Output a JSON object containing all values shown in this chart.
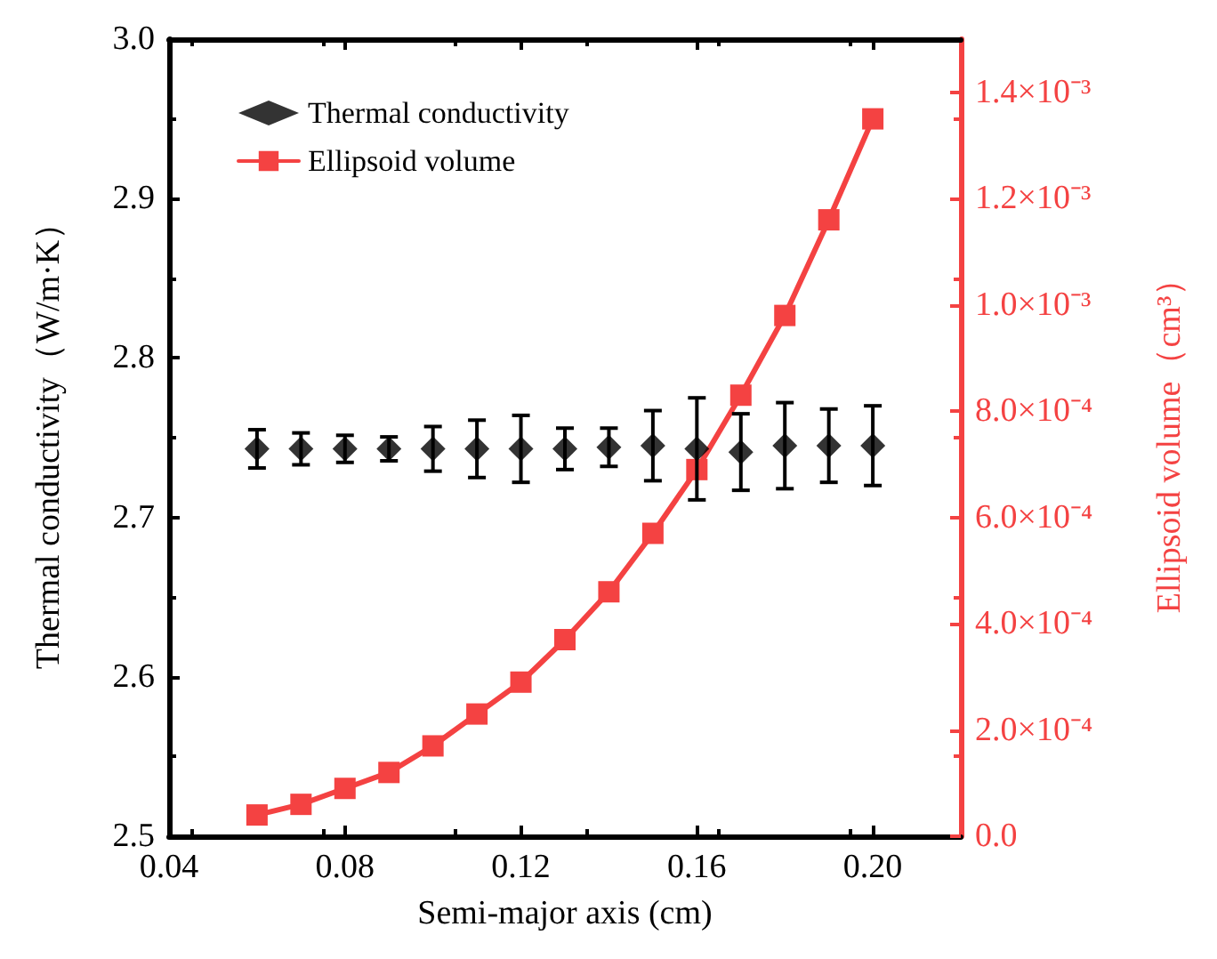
{
  "chart_data": {
    "type": "scatter",
    "xlabel": "Semi-major axis (cm)",
    "ylabel": "Thermal conductivity（W/m·K）",
    "y2label": "Ellipsoid volume（cm³）",
    "x": [
      0.06,
      0.07,
      0.08,
      0.09,
      0.1,
      0.11,
      0.12,
      0.13,
      0.14,
      0.15,
      0.16,
      0.17,
      0.18,
      0.19,
      0.2
    ],
    "series": [
      {
        "name": "Thermal conductivity",
        "color": "#000000",
        "marker": "diamond",
        "values": [
          2.743,
          2.743,
          2.743,
          2.743,
          2.743,
          2.743,
          2.743,
          2.743,
          2.744,
          2.745,
          2.743,
          2.741,
          2.745,
          2.745,
          2.745
        ],
        "errors": [
          0.012,
          0.01,
          0.0085,
          0.0075,
          0.014,
          0.018,
          0.021,
          0.013,
          0.012,
          0.022,
          0.032,
          0.024,
          0.027,
          0.023,
          0.025
        ]
      },
      {
        "name": "Ellipsoid volume",
        "type": "line",
        "color": "#f44242",
        "marker": "square",
        "axis": "y2",
        "values": [
          4e-05,
          6e-05,
          9e-05,
          0.00012,
          0.00017,
          0.00023,
          0.00029,
          0.00037,
          0.00046,
          0.00057,
          0.00069,
          0.00083,
          0.00098,
          0.00116,
          0.00135
        ]
      }
    ],
    "xlim": [
      0.04,
      0.22
    ],
    "xticks": [
      0.04,
      0.08,
      0.12,
      0.16,
      {
        "value": 0.2,
        "label": "0.20"
      }
    ],
    "ylim": [
      2.5,
      3.0
    ],
    "yticks": [
      {
        "value": 2.5,
        "label": "2.5"
      },
      2.6,
      2.7,
      2.8,
      2.9,
      {
        "value": 3.0,
        "label": "3.0"
      }
    ],
    "y2lim": [
      0,
      0.0015
    ],
    "y2ticks": [
      {
        "value": 0,
        "label": "0.0"
      },
      {
        "value": 0.0002,
        "label": "2.0×10⁻⁴"
      },
      {
        "value": 0.0004,
        "label": "4.0×10⁻⁴"
      },
      {
        "value": 0.0006,
        "label": "6.0×10⁻⁴"
      },
      {
        "value": 0.0008,
        "label": "8.0×10⁻⁴"
      },
      {
        "value": 0.001,
        "label": "1.0×10⁻³"
      },
      {
        "value": 0.0012,
        "label": "1.2×10⁻³"
      },
      {
        "value": 0.0014,
        "label": "1.4×10⁻³"
      }
    ],
    "legend": "top left",
    "grid": false,
    "line_style": "solid"
  }
}
